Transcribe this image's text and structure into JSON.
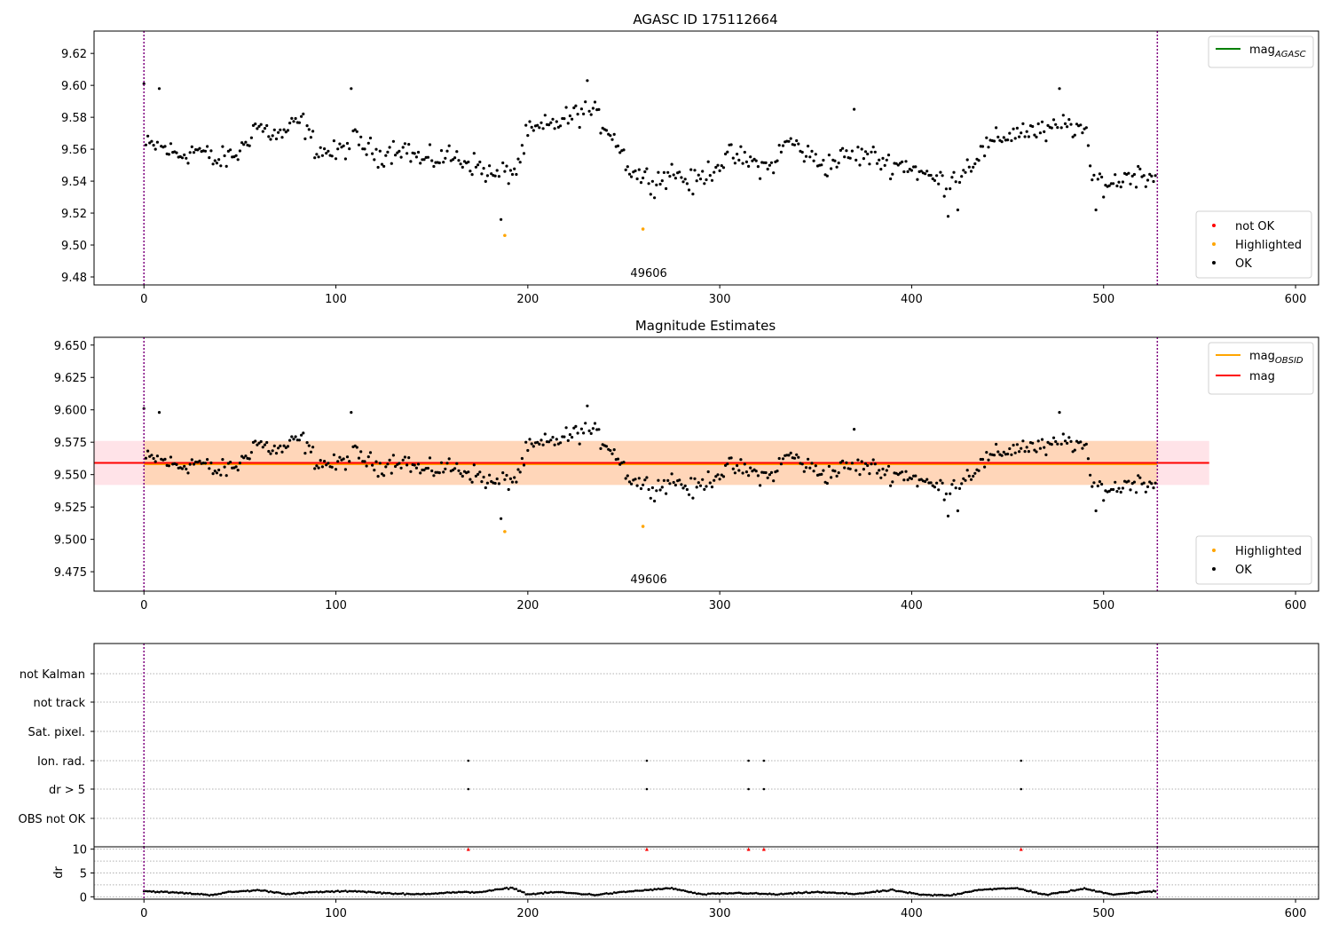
{
  "chart_data": [
    {
      "type": "scatter",
      "title": "AGASC ID 175112664",
      "xlim": [
        -26,
        612
      ],
      "ylim": [
        9.475,
        9.634
      ],
      "xticks": [
        0,
        100,
        200,
        300,
        400,
        500,
        600
      ],
      "yticks": [
        9.48,
        9.5,
        9.52,
        9.54,
        9.56,
        9.58,
        9.6,
        9.62
      ],
      "ytick_decimals": 2,
      "vlines": [
        0,
        528
      ],
      "obsid_label": "49606",
      "obsid_label_x": 263,
      "legend_lines": [
        {
          "label": "mag",
          "sub": "AGASC",
          "color": "#008000"
        }
      ],
      "legend_points": [
        {
          "label": "not OK",
          "color": "#ff0000"
        },
        {
          "label": "Highlighted",
          "color": "#ffa500"
        },
        {
          "label": "OK",
          "color": "#000000"
        }
      ],
      "highlighted": [
        [
          188,
          9.506
        ],
        [
          260,
          9.51
        ]
      ],
      "not_ok": [],
      "ok_count": 528,
      "ok_anchors": [
        [
          0,
          9.562
        ],
        [
          8,
          9.562
        ],
        [
          18,
          9.556
        ],
        [
          28,
          9.56
        ],
        [
          38,
          9.552
        ],
        [
          50,
          9.558
        ],
        [
          58,
          9.575
        ],
        [
          70,
          9.568
        ],
        [
          82,
          9.578
        ],
        [
          90,
          9.56
        ],
        [
          100,
          9.557
        ],
        [
          110,
          9.566
        ],
        [
          122,
          9.556
        ],
        [
          134,
          9.562
        ],
        [
          146,
          9.552
        ],
        [
          158,
          9.556
        ],
        [
          170,
          9.552
        ],
        [
          182,
          9.543
        ],
        [
          194,
          9.547
        ],
        [
          200,
          9.57
        ],
        [
          212,
          9.575
        ],
        [
          222,
          9.58
        ],
        [
          232,
          9.585
        ],
        [
          244,
          9.57
        ],
        [
          254,
          9.546
        ],
        [
          266,
          9.54
        ],
        [
          276,
          9.546
        ],
        [
          286,
          9.538
        ],
        [
          296,
          9.548
        ],
        [
          306,
          9.556
        ],
        [
          316,
          9.552
        ],
        [
          326,
          9.548
        ],
        [
          336,
          9.566
        ],
        [
          346,
          9.556
        ],
        [
          356,
          9.55
        ],
        [
          366,
          9.556
        ],
        [
          378,
          9.556
        ],
        [
          388,
          9.551
        ],
        [
          398,
          9.55
        ],
        [
          408,
          9.543
        ],
        [
          418,
          9.539
        ],
        [
          428,
          9.548
        ],
        [
          438,
          9.56
        ],
        [
          448,
          9.568
        ],
        [
          458,
          9.572
        ],
        [
          470,
          9.57
        ],
        [
          480,
          9.576
        ],
        [
          490,
          9.572
        ],
        [
          494,
          9.542
        ],
        [
          504,
          9.538
        ],
        [
          514,
          9.544
        ],
        [
          528,
          9.544
        ]
      ],
      "ok_noise": 0.011,
      "ok_outliers": [
        [
          0,
          9.601
        ],
        [
          8,
          9.598
        ],
        [
          108,
          9.598
        ],
        [
          231,
          9.603
        ],
        [
          370,
          9.585
        ],
        [
          477,
          9.598
        ],
        [
          186,
          9.516
        ],
        [
          419,
          9.518
        ],
        [
          424,
          9.522
        ],
        [
          496,
          9.522
        ]
      ]
    },
    {
      "type": "scatter",
      "title": "Magnitude Estimates",
      "xlim": [
        -26,
        612
      ],
      "ylim": [
        9.46,
        9.656
      ],
      "xticks": [
        0,
        100,
        200,
        300,
        400,
        500,
        600
      ],
      "yticks": [
        9.475,
        9.5,
        9.525,
        9.55,
        9.575,
        9.6,
        9.625,
        9.65
      ],
      "ytick_decimals": 3,
      "vlines": [
        0,
        528
      ],
      "obsid_label": "49606",
      "obsid_label_x": 263,
      "mag_line": {
        "value": 9.559,
        "x_range": [
          -26,
          555
        ],
        "color": "#ff0000",
        "band": [
          9.542,
          9.576
        ],
        "band_color": "#ffc0cb"
      },
      "mag_obsid_line": {
        "value": 9.558,
        "x_range": [
          0,
          528
        ],
        "color": "#ffa500",
        "band": [
          9.542,
          9.576
        ],
        "band_color": "#ffa500"
      },
      "legend_lines": [
        {
          "label": "mag",
          "sub": "OBSID",
          "color": "#ffa500"
        },
        {
          "label": "mag",
          "sub": "",
          "color": "#ff0000"
        }
      ],
      "legend_points": [
        {
          "label": "Highlighted",
          "color": "#ffa500"
        },
        {
          "label": "OK",
          "color": "#000000"
        }
      ],
      "highlighted": [
        [
          188,
          9.506
        ],
        [
          260,
          9.51
        ]
      ],
      "same_points_as_panel": 0
    },
    {
      "type": "scatter",
      "title": "",
      "xlim": [
        -26,
        612
      ],
      "categories": [
        "not Kalman",
        "not track",
        "Sat. pixel.",
        "Ion. rad.",
        "dr > 5",
        "OBS not OK"
      ],
      "vlines": [
        0,
        528
      ],
      "flags": {
        "Ion. rad.": [
          169,
          262,
          315,
          323,
          457
        ],
        "dr > 5": [
          169,
          262,
          315,
          323,
          457
        ]
      }
    },
    {
      "type": "scatter",
      "title": "",
      "xlim": [
        -26,
        612
      ],
      "ylim": [
        -0.5,
        10.5
      ],
      "xticks": [
        0,
        100,
        200,
        300,
        400,
        500,
        600
      ],
      "yticks": [
        0,
        5,
        10
      ],
      "ylabel": "dr",
      "vlines": [
        0,
        528
      ],
      "dr_count": 528,
      "dr_anchors": [
        [
          0,
          1.2
        ],
        [
          20,
          0.8
        ],
        [
          35,
          0.4
        ],
        [
          45,
          1.0
        ],
        [
          60,
          1.4
        ],
        [
          75,
          0.6
        ],
        [
          90,
          1.0
        ],
        [
          110,
          1.2
        ],
        [
          125,
          0.8
        ],
        [
          140,
          0.5
        ],
        [
          160,
          0.9
        ],
        [
          175,
          1.0
        ],
        [
          192,
          1.9
        ],
        [
          200,
          0.5
        ],
        [
          215,
          1.0
        ],
        [
          235,
          0.4
        ],
        [
          255,
          1.2
        ],
        [
          275,
          1.8
        ],
        [
          290,
          0.5
        ],
        [
          310,
          0.8
        ],
        [
          330,
          0.5
        ],
        [
          350,
          1.0
        ],
        [
          370,
          0.6
        ],
        [
          390,
          1.4
        ],
        [
          405,
          0.4
        ],
        [
          420,
          0.3
        ],
        [
          435,
          1.5
        ],
        [
          455,
          1.8
        ],
        [
          470,
          0.4
        ],
        [
          490,
          1.7
        ],
        [
          505,
          0.5
        ],
        [
          528,
          1.2
        ]
      ],
      "capped_points": [
        169,
        262,
        315,
        323,
        457
      ],
      "cap_value": 10
    }
  ]
}
